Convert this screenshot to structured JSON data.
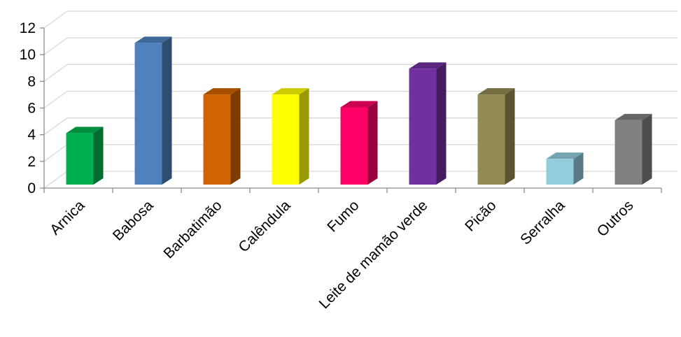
{
  "chart_data": {
    "type": "bar",
    "style": "3d-column",
    "categories": [
      "Arnica",
      "Babosa",
      "Barbatimão",
      "Calêndula",
      "Fumo",
      "Leite de mamão verde",
      "Picão",
      "Serralha",
      "Outros"
    ],
    "values": [
      4,
      11,
      7,
      7,
      6,
      9,
      7,
      2,
      5
    ],
    "colors": [
      "#00b050",
      "#4f81bd",
      "#d06400",
      "#ffff00",
      "#ff0066",
      "#7030a0",
      "#948a54",
      "#92cddc",
      "#808080"
    ],
    "yticks": [
      "0",
      "2",
      "4",
      "6",
      "8",
      "10",
      "12"
    ],
    "ylim": [
      0,
      12
    ],
    "grid": true,
    "legend": "none",
    "title": "",
    "xlabel": "",
    "ylabel": ""
  }
}
